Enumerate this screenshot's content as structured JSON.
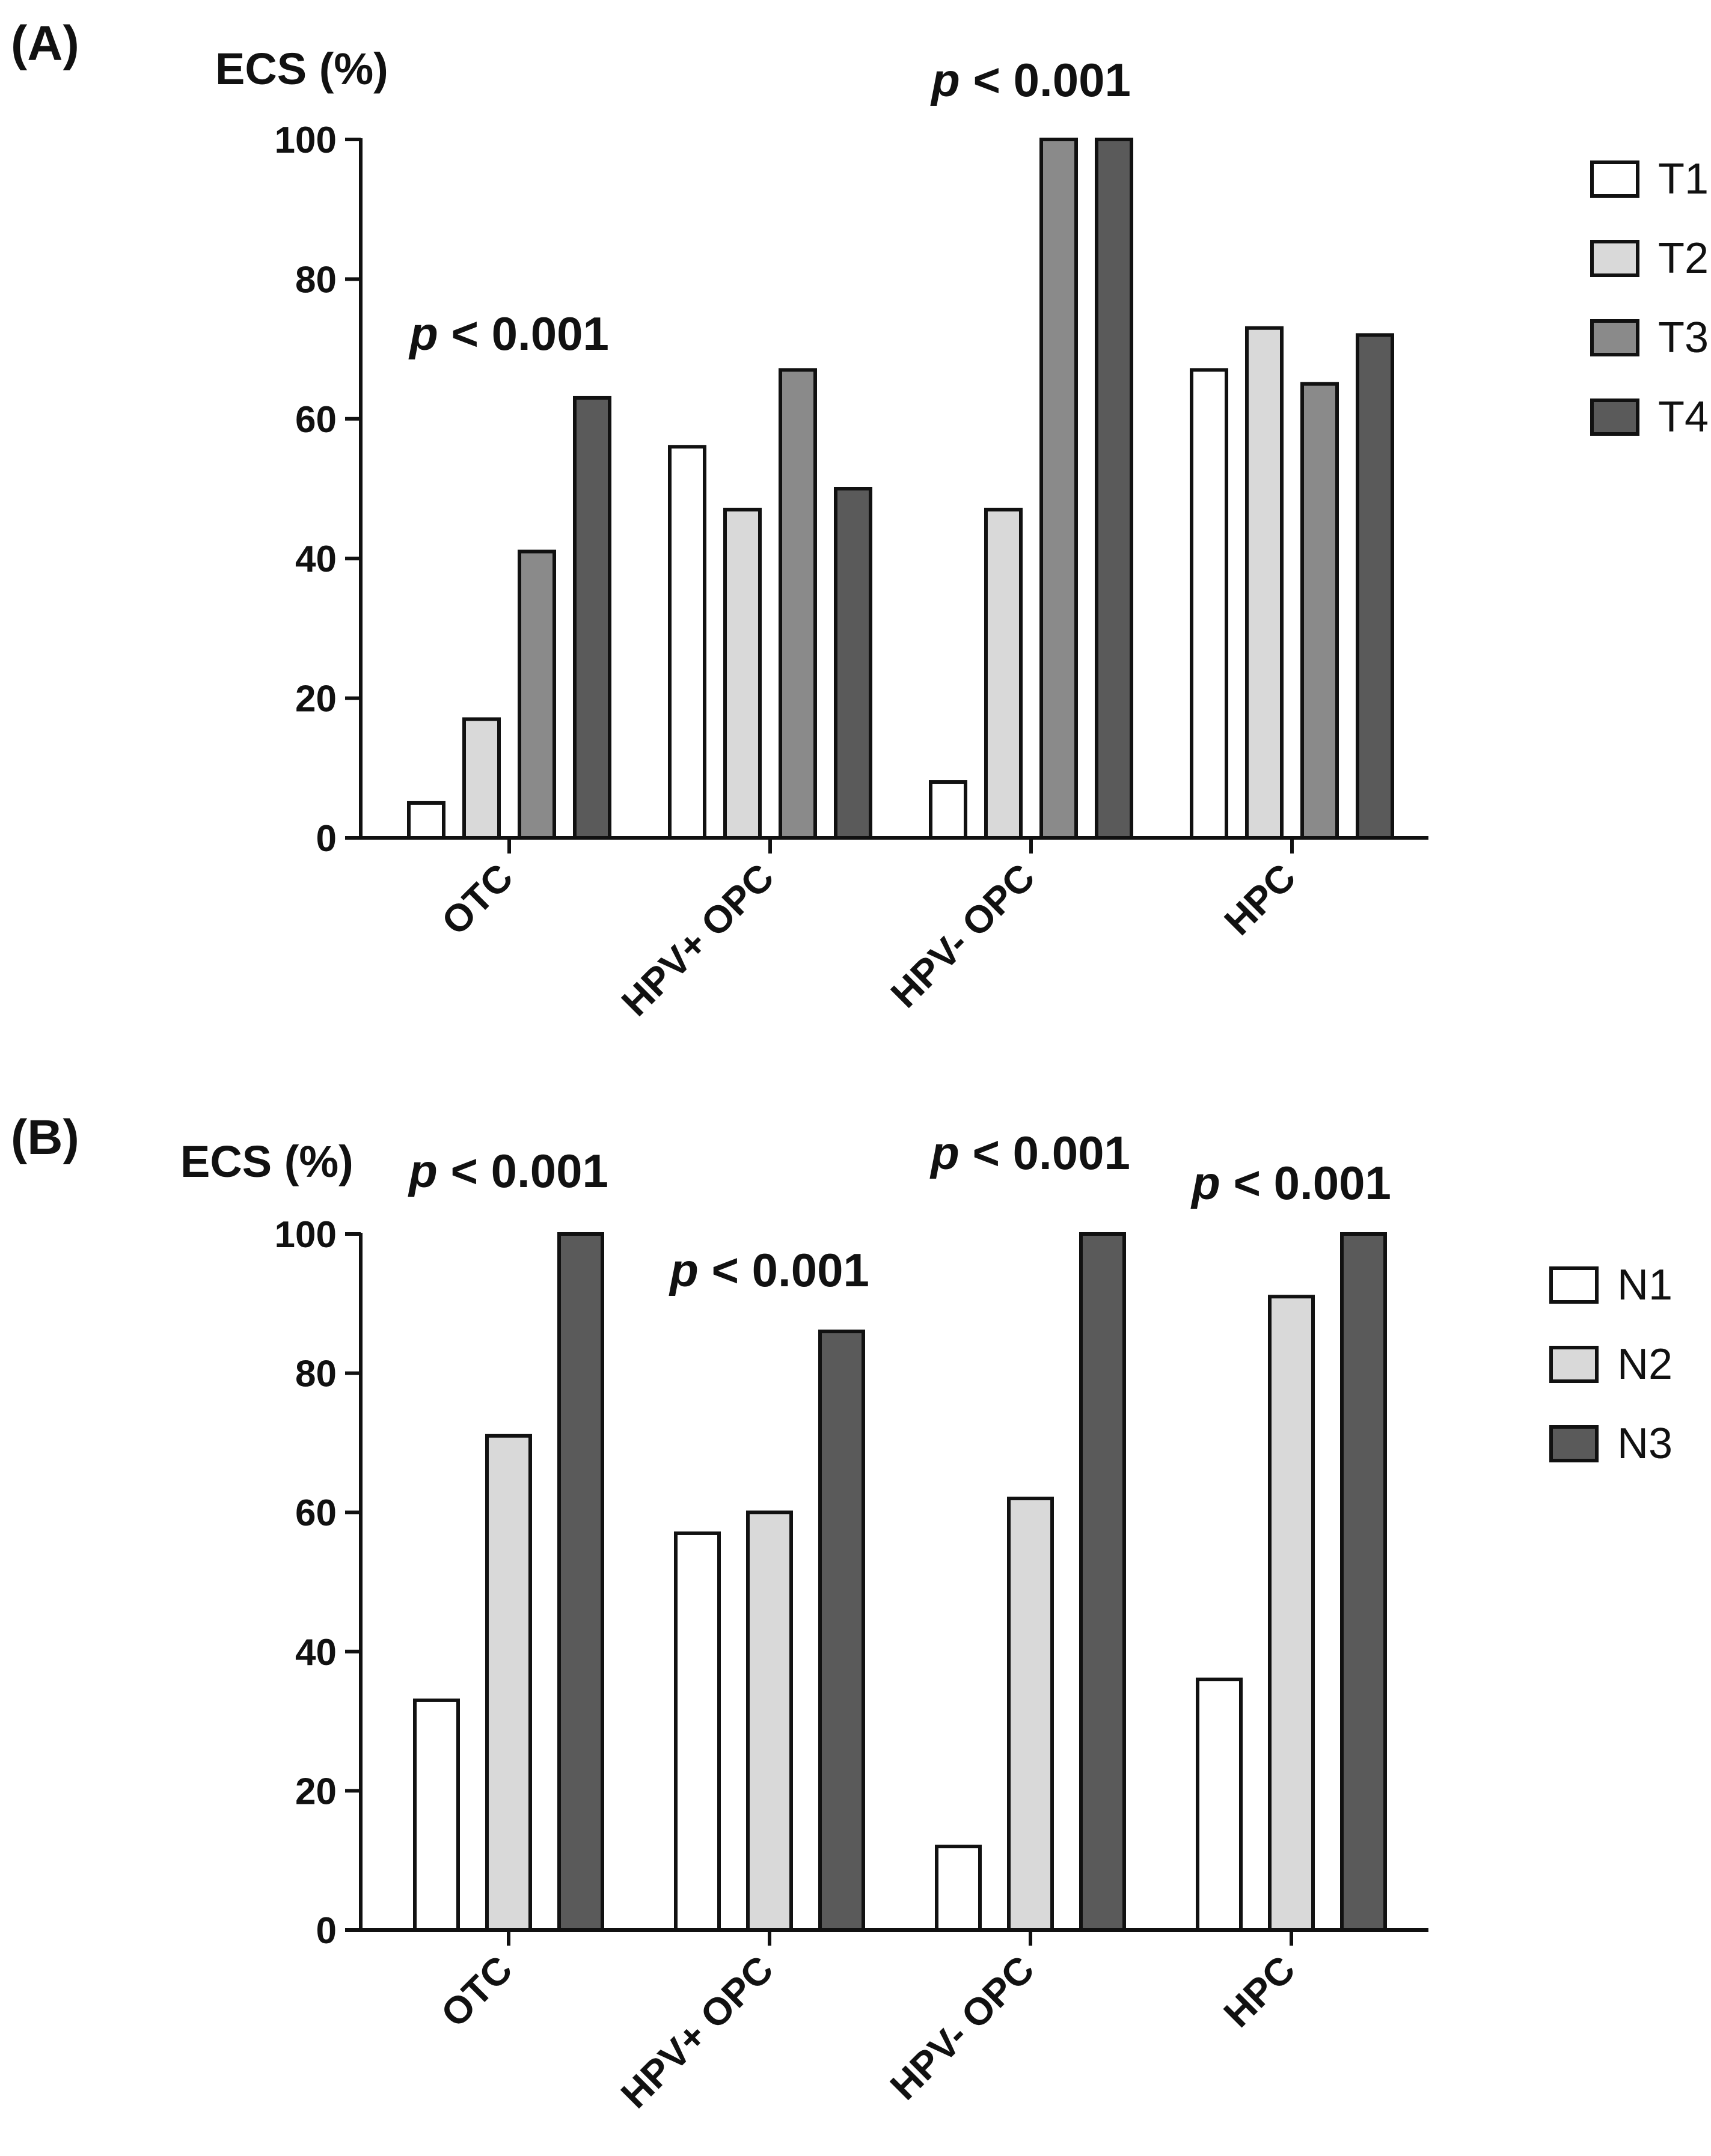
{
  "chart_data": [
    {
      "type": "bar",
      "panel_label": "(A)",
      "ylabel": "ECS (%)",
      "ylim": [
        0,
        100
      ],
      "yticks": [
        "0",
        "20",
        "40",
        "60",
        "80",
        "100"
      ],
      "categories": [
        "OTC",
        "HPV+ OPC",
        "HPV- OPC",
        "HPC"
      ],
      "series": [
        {
          "name": "T1",
          "values": [
            5,
            56,
            8,
            67
          ],
          "color": "#ffffff"
        },
        {
          "name": "T2",
          "values": [
            17,
            47,
            47,
            73
          ],
          "color": "#d9d9d9"
        },
        {
          "name": "T3",
          "values": [
            41,
            67,
            100,
            65
          ],
          "color": "#8a8a8a"
        },
        {
          "name": "T4",
          "values": [
            63,
            50,
            100,
            72
          ],
          "color": "#5a5a5a"
        }
      ],
      "annotations": [
        {
          "category": "OTC",
          "p": "p",
          "rest": " < 0.001"
        },
        {
          "category": "HPV- OPC",
          "p": "p",
          "rest": " < 0.001"
        }
      ],
      "legend_position": "right"
    },
    {
      "type": "bar",
      "panel_label": "(B)",
      "ylabel": "ECS (%)",
      "ylim": [
        0,
        100
      ],
      "yticks": [
        "0",
        "20",
        "40",
        "60",
        "80",
        "100"
      ],
      "categories": [
        "OTC",
        "HPV+ OPC",
        "HPV- OPC",
        "HPC"
      ],
      "series": [
        {
          "name": "N1",
          "values": [
            33,
            57,
            12,
            36
          ],
          "color": "#ffffff"
        },
        {
          "name": "N2",
          "values": [
            71,
            60,
            62,
            91
          ],
          "color": "#d9d9d9"
        },
        {
          "name": "N3",
          "values": [
            100,
            86,
            100,
            100
          ],
          "color": "#5a5a5a"
        }
      ],
      "annotations": [
        {
          "category": "OTC",
          "p": "p",
          "rest": " < 0.001"
        },
        {
          "category": "HPV+ OPC",
          "p": "p",
          "rest": " < 0.001"
        },
        {
          "category": "HPV- OPC",
          "p": "p",
          "rest": " < 0.001"
        },
        {
          "category": "HPC",
          "p": "p",
          "rest": " < 0.001"
        }
      ],
      "legend_position": "right"
    }
  ]
}
